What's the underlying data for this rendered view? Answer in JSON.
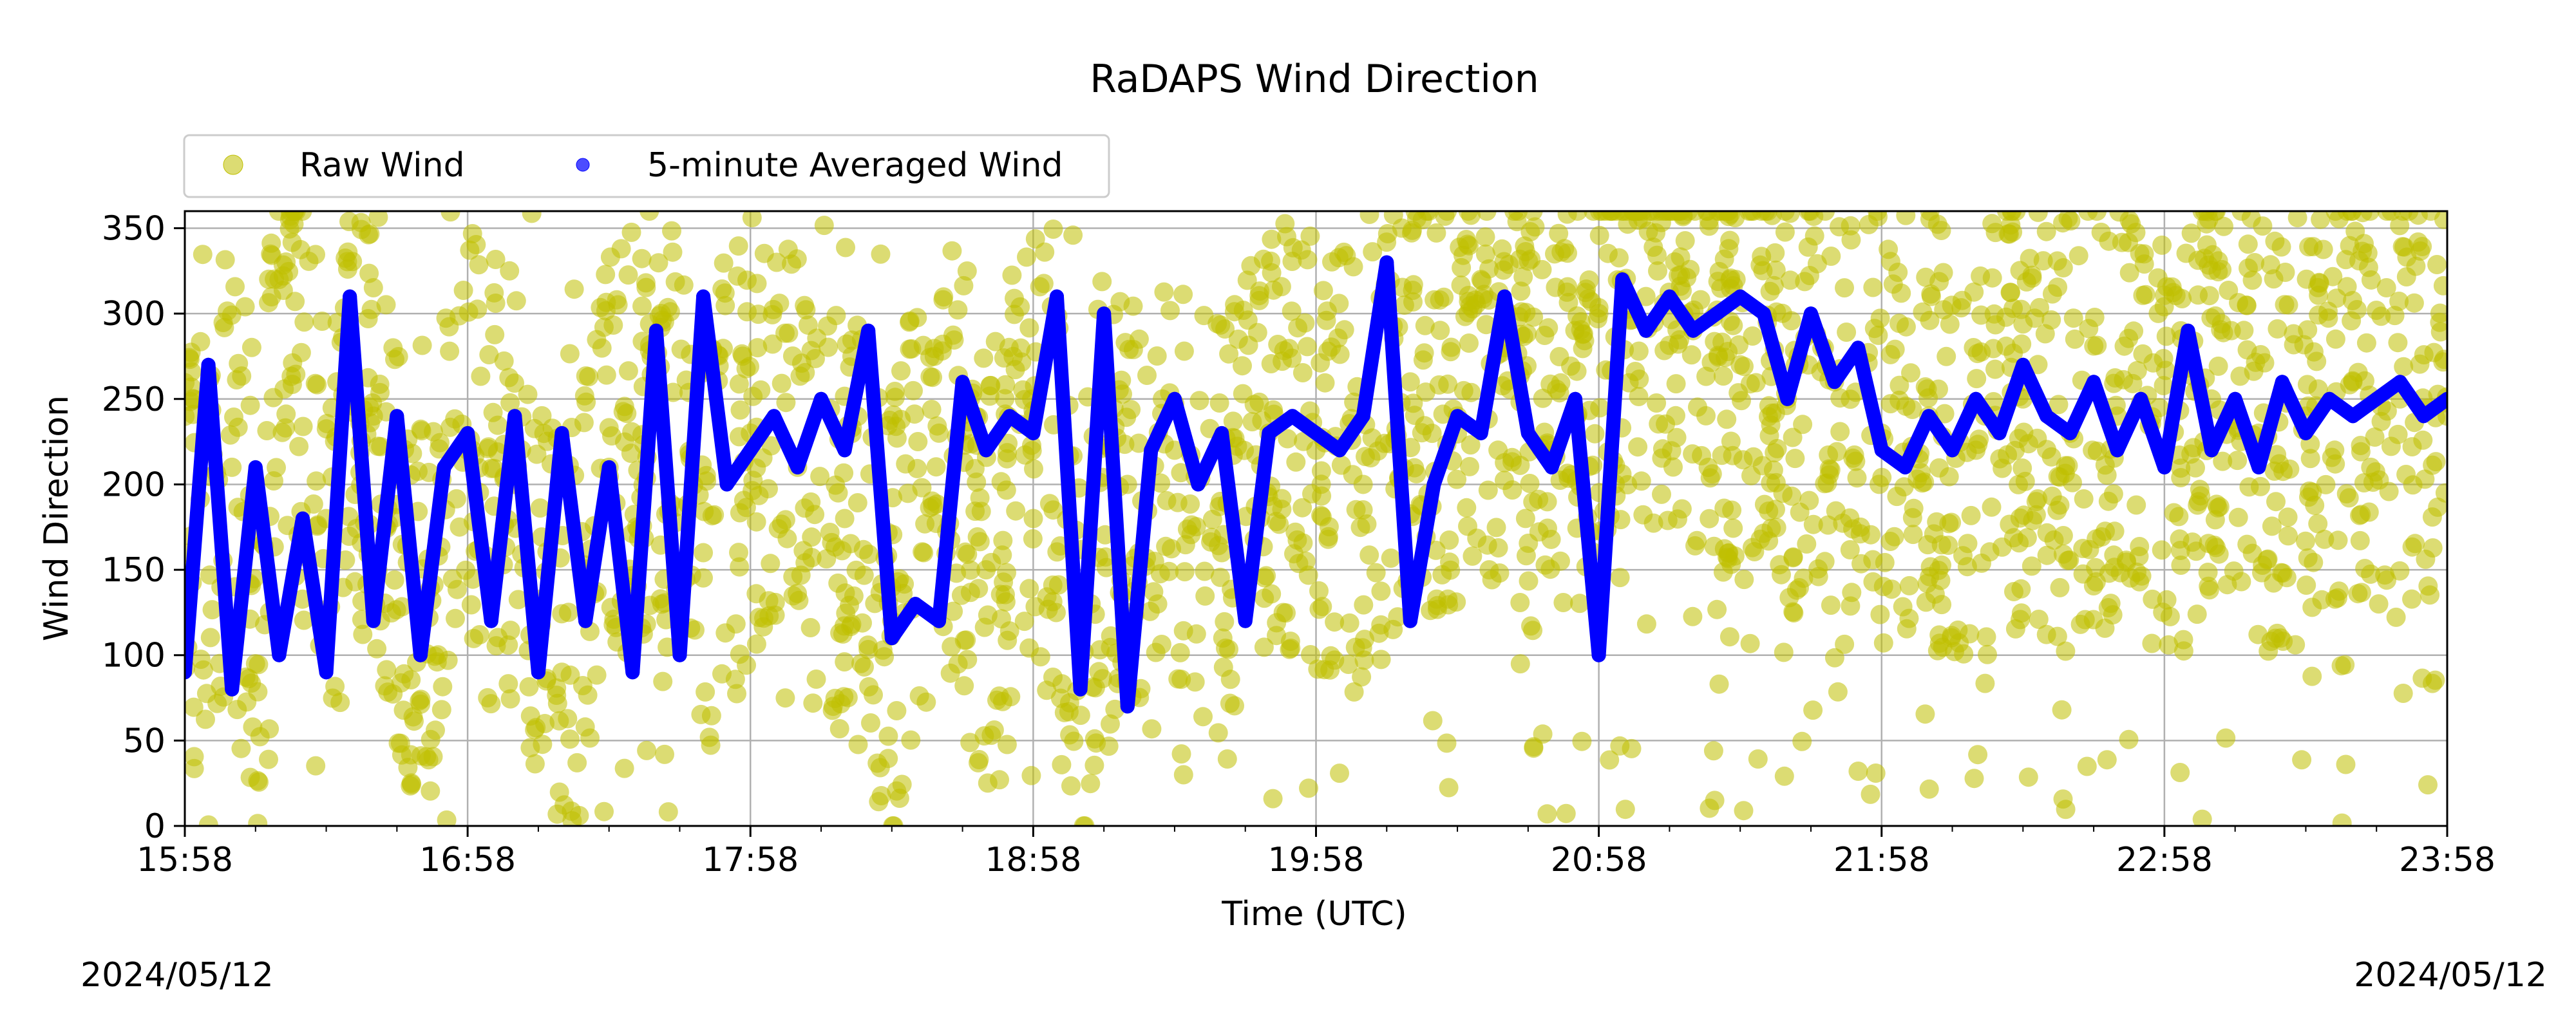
{
  "chart_data": {
    "type": "scatter",
    "title": "RaDAPS Wind Direction",
    "xlabel": "Time (UTC)",
    "ylabel": "Wind Direction",
    "xlim": [
      "15:58",
      "23:58"
    ],
    "ylim": [
      0,
      360
    ],
    "x_ticks": [
      "15:58",
      "16:58",
      "17:58",
      "18:58",
      "19:58",
      "20:58",
      "21:58",
      "22:58",
      "23:58"
    ],
    "y_ticks": [
      0,
      50,
      100,
      150,
      200,
      250,
      300,
      350
    ],
    "grid": true,
    "legend_position": "top-left",
    "date_start": "2024/05/12",
    "date_end": "2024/05/12",
    "series": [
      {
        "name": "Raw Wind",
        "style": "scatter",
        "color": "#bfbf00",
        "x": [
          "15:58",
          "16:08",
          "16:13",
          "16:18",
          "16:28",
          "16:38",
          "16:48",
          "16:58",
          "17:08",
          "17:18",
          "17:28",
          "17:38",
          "17:48",
          "17:58",
          "18:08",
          "18:18",
          "18:28",
          "18:38",
          "18:48",
          "18:58",
          "19:08",
          "19:18",
          "19:28",
          "19:38",
          "19:48",
          "19:58",
          "20:08",
          "20:18",
          "20:28",
          "20:38",
          "20:48",
          "20:58",
          "21:08",
          "21:18",
          "21:28",
          "21:38",
          "21:48",
          "21:58",
          "22:08",
          "22:18",
          "22:28",
          "22:38",
          "22:48",
          "22:58",
          "23:08",
          "23:18",
          "23:28",
          "23:38",
          "23:48",
          "23:58"
        ],
        "y": [
          150,
          210,
          95,
          320,
          180,
          240,
          120,
          220,
          200,
          90,
          210,
          250,
          160,
          230,
          210,
          180,
          120,
          230,
          150,
          240,
          110,
          200,
          220,
          160,
          230,
          220,
          200,
          260,
          240,
          280,
          220,
          300,
          310,
          290,
          270,
          250,
          260,
          230,
          240,
          220,
          250,
          230,
          240,
          220,
          250,
          230,
          240,
          260,
          250,
          240
        ]
      },
      {
        "name": "5-minute Averaged Wind",
        "style": "line",
        "color": "#0000ff",
        "x": [
          "15:58",
          "16:03",
          "16:08",
          "16:13",
          "16:18",
          "16:23",
          "16:28",
          "16:33",
          "16:38",
          "16:43",
          "16:48",
          "16:53",
          "16:58",
          "17:03",
          "17:08",
          "17:13",
          "17:18",
          "17:23",
          "17:28",
          "17:33",
          "17:38",
          "17:43",
          "17:48",
          "17:53",
          "17:58",
          "18:03",
          "18:08",
          "18:13",
          "18:18",
          "18:23",
          "18:28",
          "18:33",
          "18:38",
          "18:43",
          "18:48",
          "18:53",
          "18:58",
          "19:03",
          "19:08",
          "19:13",
          "19:18",
          "19:23",
          "19:28",
          "19:33",
          "19:38",
          "19:43",
          "19:48",
          "19:53",
          "19:58",
          "20:03",
          "20:08",
          "20:13",
          "20:18",
          "20:23",
          "20:28",
          "20:33",
          "20:38",
          "20:43",
          "20:48",
          "20:53",
          "20:58",
          "21:03",
          "21:08",
          "21:13",
          "21:18",
          "21:23",
          "21:28",
          "21:33",
          "21:38",
          "21:43",
          "21:48",
          "21:53",
          "21:58",
          "22:03",
          "22:08",
          "22:13",
          "22:18",
          "22:23",
          "22:28",
          "22:33",
          "22:38",
          "22:43",
          "22:48",
          "22:53",
          "22:58",
          "23:03",
          "23:08",
          "23:13",
          "23:18",
          "23:23",
          "23:28",
          "23:33",
          "23:38",
          "23:43",
          "23:48",
          "23:53",
          "23:58"
        ],
        "y": [
          90,
          270,
          80,
          210,
          100,
          180,
          90,
          310,
          120,
          240,
          100,
          210,
          230,
          120,
          240,
          90,
          230,
          120,
          210,
          90,
          290,
          100,
          310,
          200,
          220,
          240,
          210,
          250,
          220,
          290,
          110,
          130,
          120,
          260,
          220,
          240,
          230,
          310,
          80,
          300,
          70,
          220,
          250,
          200,
          230,
          120,
          230,
          240,
          230,
          220,
          240,
          330,
          120,
          200,
          240,
          230,
          310,
          230,
          210,
          250,
          100,
          320,
          290,
          310,
          290,
          300,
          310,
          300,
          250,
          300,
          260,
          280,
          220,
          210,
          240,
          220,
          250,
          230,
          270,
          240,
          230,
          260,
          220,
          250,
          210,
          290,
          220,
          250,
          210,
          260,
          230,
          250,
          240,
          250,
          260,
          240,
          250
        ]
      }
    ]
  }
}
